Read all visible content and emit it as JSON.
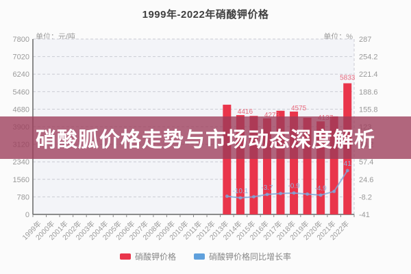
{
  "title": "1999年-2022年硝酸钾价格",
  "banner": {
    "text": "硝酸胍价格走势与市场动态深度解析",
    "bg_color": "rgba(156,60,90,0.78)"
  },
  "left_axis": {
    "unit_label": "单位：元/吨",
    "ticks": [
      7800,
      7020,
      6240,
      5460,
      4680,
      3900,
      3120,
      2340,
      1560,
      780,
      0
    ]
  },
  "right_axis": {
    "unit_label": "单位：%",
    "ticks": [
      287,
      254.2,
      221.4,
      188.6,
      155.8,
      123,
      90.2,
      57.4,
      24.6,
      -8.2,
      -41
    ]
  },
  "legend": [
    {
      "label": "硝酸钾价格",
      "color": "#e9354b",
      "type": "bar"
    },
    {
      "label": "硝酸钾价格同比增长率",
      "color": "#5fa0dc",
      "type": "line"
    }
  ],
  "colors": {
    "bar": "#e9354b",
    "bar_label": "#e8697c",
    "line": "rgba(125,168,218,0.8)",
    "line_label": "#93b6e0",
    "grid": "#c9cad2",
    "axis": "#666666",
    "tick_text": "#9a9a9a",
    "plot_bg": "#f3f4f8"
  },
  "chart_data": {
    "type": "bar+line dual-axis",
    "title": "1999年-2022年硝酸钾价格",
    "categories": [
      "1999年",
      "2000年",
      "2001年",
      "2002年",
      "2003年",
      "2004年",
      "2005年",
      "2006年",
      "2007年",
      "2008年",
      "2009年",
      "2010年",
      "2011年",
      "2012年",
      "2013年",
      "2014年",
      "2015年",
      "2016年",
      "2017年",
      "2018年",
      "2019年",
      "2020年",
      "2021年",
      "2022年"
    ],
    "left_ylim": [
      0,
      7800
    ],
    "right_ylim": [
      -41,
      287
    ],
    "grid": true,
    "legend_position": "bottom",
    "series": [
      {
        "name": "硝酸钾价格",
        "type": "bar",
        "axis": "left",
        "values": [
          null,
          null,
          null,
          null,
          null,
          null,
          null,
          null,
          null,
          null,
          null,
          null,
          null,
          null,
          4880,
          4416,
          4380,
          4273,
          4610,
          4575,
          4300,
          4137,
          4360,
          5833
        ],
        "labeled_values": {
          "2014年": 4416,
          "2016年": 4273,
          "2018年": 4575,
          "2020年": 4137,
          "2022年": 5833
        },
        "note_estimated_years": [
          "2013年",
          "2015年",
          "2017年",
          "2019年",
          "2021年"
        ]
      },
      {
        "name": "硝酸钾价格同比增长率",
        "type": "line",
        "axis": "right",
        "values": [
          null,
          null,
          null,
          null,
          null,
          null,
          null,
          null,
          null,
          null,
          null,
          null,
          null,
          null,
          -7,
          -10.1,
          -8,
          -3.7,
          -2,
          -0.9,
          -3,
          -4.9,
          2,
          41
        ],
        "labeled_values": {
          "2014年": -10.1,
          "2016年": -3.7,
          "2018年": -0.9,
          "2020年": -4.9,
          "2022年": 41
        },
        "note_estimated_years": [
          "2013年",
          "2015年",
          "2017年",
          "2019年",
          "2021年"
        ]
      }
    ]
  }
}
